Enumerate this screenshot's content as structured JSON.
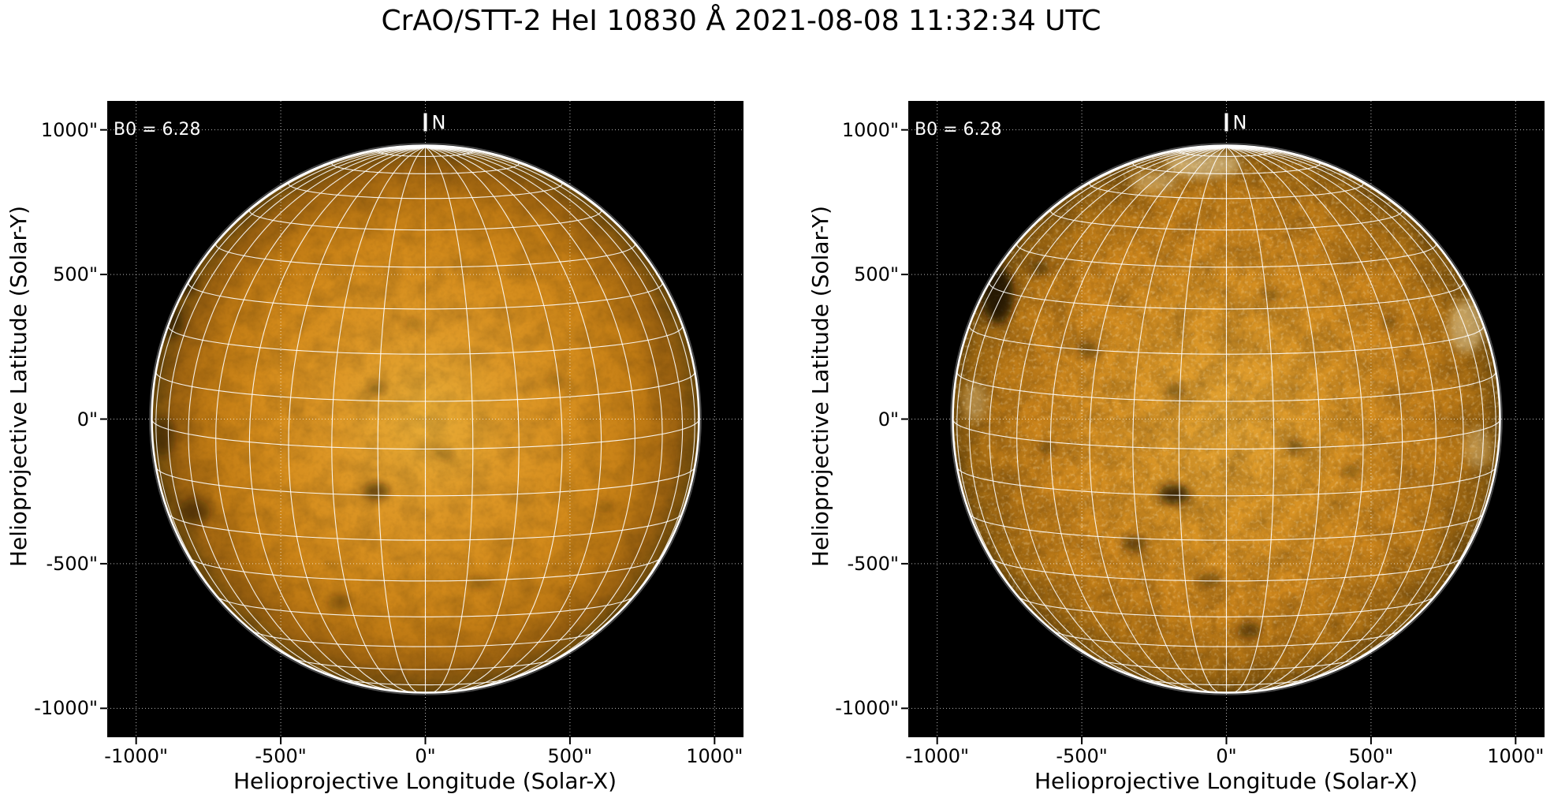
{
  "figure": {
    "title": "CrAO/STT-2 HeI 10830 Å 2021-08-08 11:32:34 UTC",
    "background_color": "#ffffff"
  },
  "chart_data": {
    "type": "heatmap",
    "subtype": "solar-full-disk-images-with-heliographic-grid",
    "title": "CrAO/STT-2 HeI 10830 Å 2021-08-08 11:32:34 UTC",
    "panels": [
      {
        "name": "left-disk",
        "description": "smooth He I 10830 intensity image",
        "b0_label": "B0 = 6.28",
        "b0_deg": 6.28,
        "north_marker": "N",
        "xlabel": "Helioprojective Longitude (Solar-X)",
        "ylabel": "Helioprojective Latitude (Solar-Y)",
        "xlim": [
          -1100,
          1100
        ],
        "ylim": [
          -1100,
          1100
        ],
        "xticks": [
          {
            "value": -1000,
            "label": "-1000\""
          },
          {
            "value": -500,
            "label": "-500\""
          },
          {
            "value": 0,
            "label": "0\""
          },
          {
            "value": 500,
            "label": "500\""
          },
          {
            "value": 1000,
            "label": "1000\""
          }
        ],
        "yticks": [
          {
            "value": 1000,
            "label": "1000\""
          },
          {
            "value": 500,
            "label": "500\""
          },
          {
            "value": 0,
            "label": "0\""
          },
          {
            "value": -500,
            "label": "-500\""
          },
          {
            "value": -1000,
            "label": "-1000\""
          }
        ],
        "grid_step_deg": 10,
        "grid_color": "#ffffff",
        "solar_radius_arcsec": 946,
        "background_color": "#000000",
        "texture": "smooth",
        "disk_gradient": [
          [
            0,
            "#e7ab36"
          ],
          [
            0.35,
            "#dd9726"
          ],
          [
            0.62,
            "#d28a1b"
          ],
          [
            0.8,
            "#bf7a14"
          ],
          [
            0.92,
            "#9c6210"
          ],
          [
            1,
            "#6e4c0d"
          ]
        ],
        "dark_features_xy_rx_ry_op": [
          [
            -850,
            470,
            60,
            35,
            0.7
          ],
          [
            -880,
            330,
            45,
            55,
            0.5
          ],
          [
            -905,
            -60,
            40,
            70,
            0.45
          ],
          [
            -800,
            -320,
            55,
            45,
            0.5
          ],
          [
            -170,
            105,
            30,
            20,
            0.4
          ],
          [
            -168,
            -250,
            45,
            28,
            0.6
          ],
          [
            -300,
            -635,
            40,
            25,
            0.35
          ],
          [
            60,
            -120,
            35,
            22,
            0.28
          ],
          [
            450,
            135,
            35,
            20,
            0.28
          ],
          [
            185,
            -565,
            42,
            22,
            0.35
          ],
          [
            -40,
            330,
            30,
            20,
            0.28
          ],
          [
            620,
            -300,
            30,
            20,
            0.25
          ]
        ],
        "bright_features_xy_rx_ry_op": []
      },
      {
        "name": "right-disk",
        "description": "granular He I 10830 line-parameter image",
        "b0_label": "B0 = 6.28",
        "b0_deg": 6.28,
        "north_marker": "N",
        "xlabel": "Helioprojective Longitude (Solar-X)",
        "ylabel": "Helioprojective Latitude (Solar-Y)",
        "xlim": [
          -1100,
          1100
        ],
        "ylim": [
          -1100,
          1100
        ],
        "xticks": [
          {
            "value": -1000,
            "label": "-1000\""
          },
          {
            "value": -500,
            "label": "-500\""
          },
          {
            "value": 0,
            "label": "0\""
          },
          {
            "value": 500,
            "label": "500\""
          },
          {
            "value": 1000,
            "label": "1000\""
          }
        ],
        "yticks": [
          {
            "value": 1000,
            "label": "1000\""
          },
          {
            "value": 500,
            "label": "500\""
          },
          {
            "value": 0,
            "label": "0\""
          },
          {
            "value": -500,
            "label": "-500\""
          },
          {
            "value": -1000,
            "label": "-1000\""
          }
        ],
        "grid_step_deg": 10,
        "grid_color": "#ffffff",
        "solar_radius_arcsec": 946,
        "background_color": "#000000",
        "texture": "granular",
        "disk_gradient": [
          [
            0,
            "#e3a332"
          ],
          [
            0.4,
            "#d89324"
          ],
          [
            0.68,
            "#cd861c"
          ],
          [
            0.85,
            "#b97816"
          ],
          [
            0.95,
            "#9a6511"
          ],
          [
            1,
            "#7a520e"
          ]
        ],
        "dark_features_xy_rx_ry_op": [
          [
            -790,
            430,
            55,
            100,
            0.85
          ],
          [
            -645,
            520,
            35,
            25,
            0.5
          ],
          [
            -480,
            240,
            35,
            25,
            0.5
          ],
          [
            -180,
            -260,
            55,
            35,
            0.8
          ],
          [
            -320,
            -430,
            42,
            28,
            0.6
          ],
          [
            80,
            -730,
            45,
            25,
            0.6
          ],
          [
            -180,
            100,
            32,
            22,
            0.45
          ],
          [
            240,
            -95,
            32,
            20,
            0.45
          ],
          [
            430,
            -180,
            35,
            22,
            0.4
          ],
          [
            -620,
            -100,
            32,
            22,
            0.4
          ],
          [
            160,
            430,
            30,
            20,
            0.35
          ],
          [
            560,
            330,
            30,
            20,
            0.3
          ],
          [
            -60,
            -555,
            40,
            25,
            0.45
          ]
        ],
        "bright_features_xy_rx_ry_op": [
          [
            -80,
            880,
            130,
            45,
            0.5
          ],
          [
            -250,
            820,
            80,
            35,
            0.35
          ],
          [
            830,
            320,
            60,
            90,
            0.45
          ],
          [
            870,
            -100,
            45,
            70,
            0.3
          ],
          [
            -870,
            60,
            40,
            70,
            0.3
          ]
        ]
      }
    ]
  }
}
